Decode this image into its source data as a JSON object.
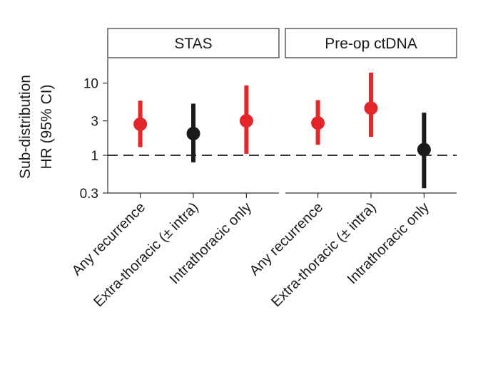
{
  "chart_data": {
    "type": "scatter",
    "subtype": "point-range (forest plot)",
    "ylabel_lines": [
      "Sub-distribution",
      "HR (95% CI)"
    ],
    "yscale": "log",
    "ylim": [
      0.3,
      22
    ],
    "yticks": [
      0.3,
      1,
      3,
      10
    ],
    "ytick_labels": [
      "0.3",
      "1",
      "3",
      "10"
    ],
    "reference_line": 1,
    "colors": {
      "significant": "#e2262a",
      "not_significant": "#1a1a1a",
      "reference": "#1a1a1a",
      "panel_border": "#333333"
    },
    "panels": [
      {
        "title": "STAS",
        "points": [
          {
            "label": "Any recurrence",
            "hr": 2.7,
            "lower": 1.3,
            "upper": 5.7,
            "significant": true
          },
          {
            "label": "Extra-thoracic (± intra)",
            "hr": 2.0,
            "lower": 0.8,
            "upper": 5.2,
            "significant": false
          },
          {
            "label": "Intrathoracic only",
            "hr": 3.0,
            "lower": 1.05,
            "upper": 9.3,
            "significant": true
          }
        ]
      },
      {
        "title": "Pre-op ctDNA",
        "points": [
          {
            "label": "Any recurrence",
            "hr": 2.8,
            "lower": 1.4,
            "upper": 5.8,
            "significant": true
          },
          {
            "label": "Extra-thoracic (± intra)",
            "hr": 4.5,
            "lower": 1.8,
            "upper": 14.0,
            "significant": true
          },
          {
            "label": "Intrathoracic only",
            "hr": 1.2,
            "lower": 0.35,
            "upper": 3.9,
            "significant": false
          }
        ]
      }
    ]
  }
}
